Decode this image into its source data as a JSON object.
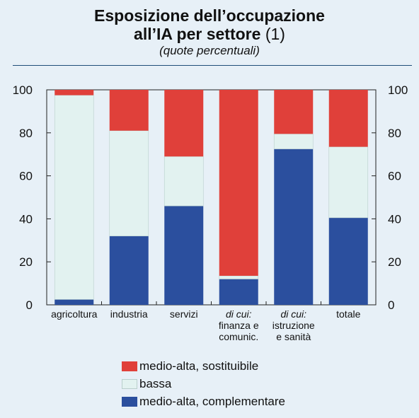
{
  "title_line1": "Esposizione dell’occupazione",
  "title_line2": "all’IA per settore",
  "title_note": "(1)",
  "subtitle": "(quote percentuali)",
  "colors": {
    "sostituibile": "#e0403a",
    "bassa": "#e2f2f0",
    "complementare": "#2b4f9e",
    "axis": "#222222",
    "rule": "#1f4e79"
  },
  "chart_data": {
    "type": "bar",
    "stacked": true,
    "ylim": [
      0,
      100
    ],
    "yticks": [
      0,
      20,
      40,
      60,
      80,
      100
    ],
    "categories": [
      [
        "agricoltura"
      ],
      [
        "industria"
      ],
      [
        "servizi"
      ],
      [
        "di cui:",
        "finanza e",
        "comunic."
      ],
      [
        "di cui:",
        "istruzione",
        "e sanità"
      ],
      [
        "totale"
      ]
    ],
    "series": [
      {
        "key": "complementare",
        "name": "medio-alta, complementare",
        "values": [
          2.5,
          32,
          46,
          12,
          72.5,
          40.5
        ]
      },
      {
        "key": "bassa",
        "name": "bassa",
        "values": [
          95,
          49,
          23,
          1.5,
          7,
          33
        ]
      },
      {
        "key": "sostituibile",
        "name": "medio-alta, sostituibile",
        "values": [
          2.5,
          19,
          31,
          86.5,
          20.5,
          26.5
        ]
      }
    ],
    "legend_order": [
      "sostituibile",
      "bassa",
      "complementare"
    ],
    "legend": "bottom",
    "grid": false
  }
}
